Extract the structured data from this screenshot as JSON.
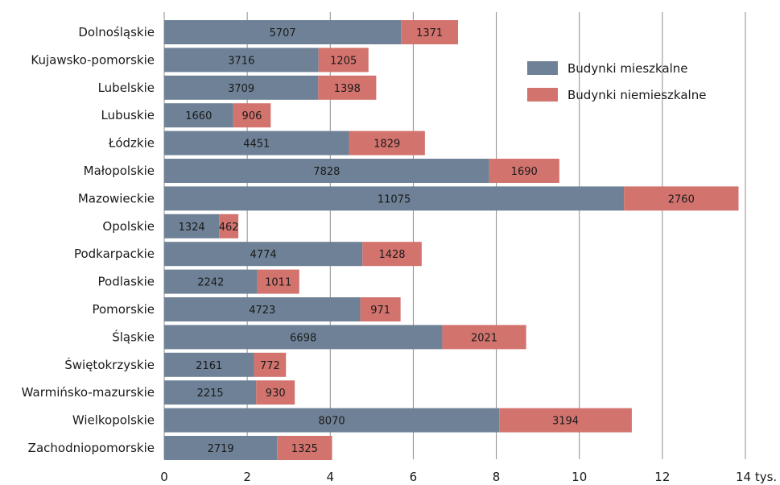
{
  "chart_data": {
    "type": "bar",
    "orientation": "horizontal",
    "stacked": true,
    "categories": [
      "Dolnośląskie",
      "Kujawsko-pomorskie",
      "Lubelskie",
      "Lubuskie",
      "Łódzkie",
      "Małopolskie",
      "Mazowieckie",
      "Opolskie",
      "Podkarpackie",
      "Podlaskie",
      "Pomorskie",
      "Śląskie",
      "Świętokrzyskie",
      "Warmińsko-mazurskie",
      "Wielkopolskie",
      "Zachodniopomorskie"
    ],
    "series": [
      {
        "name": "Budynki mieszkalne",
        "color": "#6e8196",
        "values": [
          5707,
          3716,
          3709,
          1660,
          4451,
          7828,
          11075,
          1324,
          4774,
          2242,
          4723,
          6698,
          2161,
          2215,
          8070,
          2719
        ]
      },
      {
        "name": "Budynki niemieszkalne",
        "color": "#d2736e",
        "values": [
          1371,
          1205,
          1398,
          906,
          1829,
          1690,
          2760,
          462,
          1428,
          1011,
          971,
          2021,
          772,
          930,
          3194,
          1325
        ]
      }
    ],
    "xlim": [
      0,
      14000
    ],
    "x_ticks": [
      {
        "value": 0,
        "label": "0"
      },
      {
        "value": 2000,
        "label": "2"
      },
      {
        "value": 4000,
        "label": "4"
      },
      {
        "value": 6000,
        "label": "6"
      },
      {
        "value": 8000,
        "label": "8"
      },
      {
        "value": 10000,
        "label": "10"
      },
      {
        "value": 12000,
        "label": "12"
      },
      {
        "value": 14000,
        "label": "14 tys."
      }
    ],
    "grid": true,
    "legend_position": "top-right"
  }
}
